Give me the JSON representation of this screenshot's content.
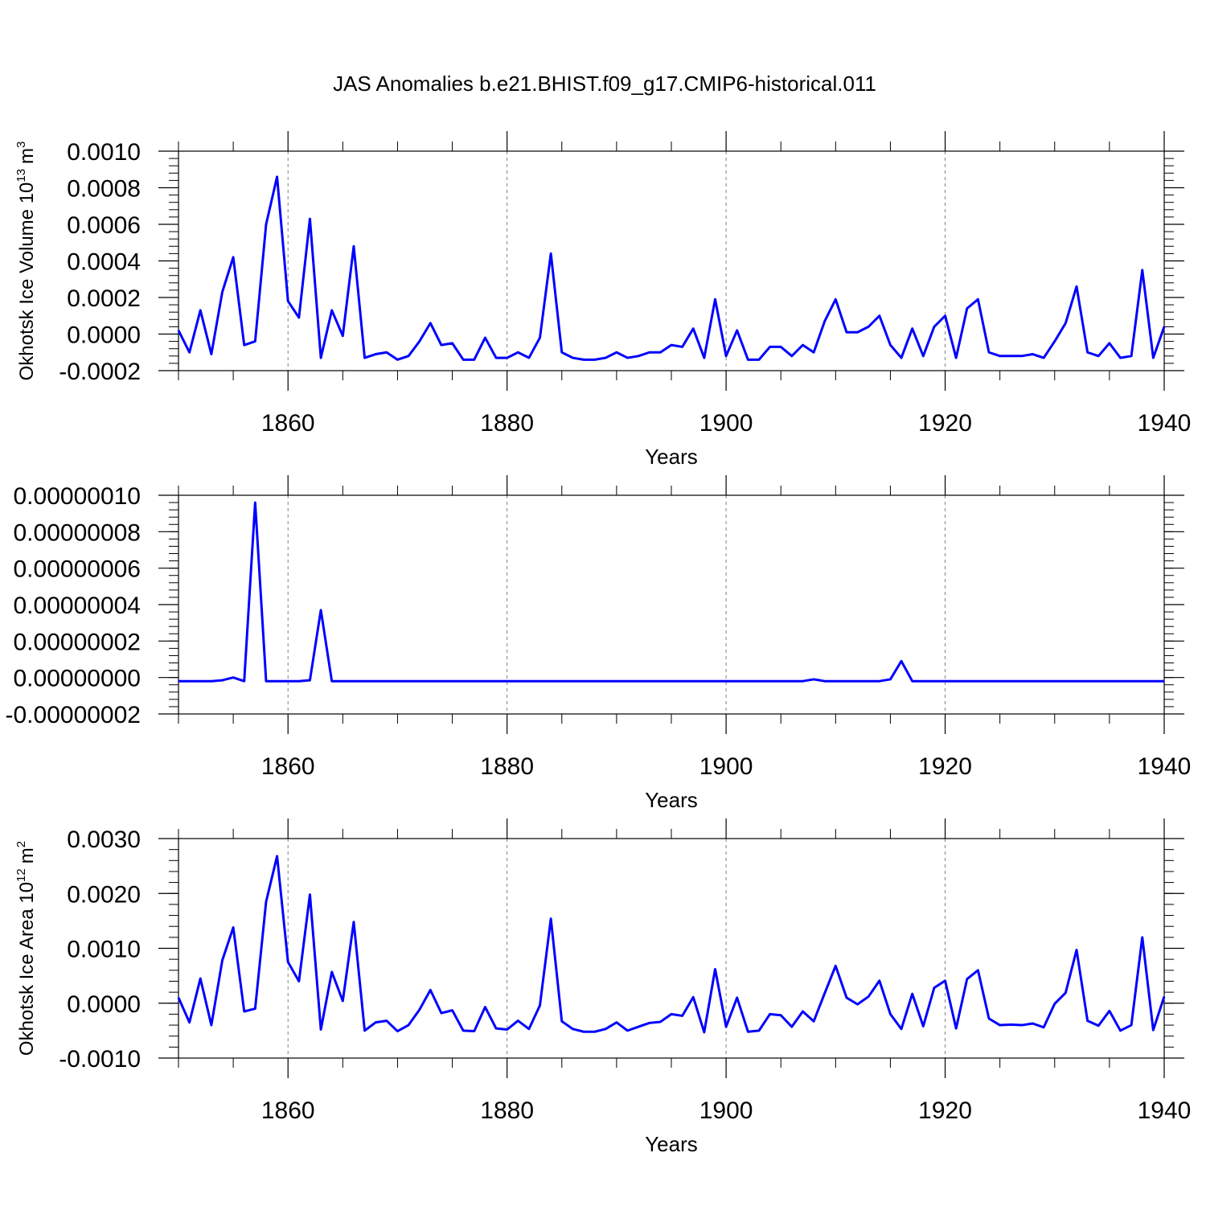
{
  "title": "JAS Anomalies b.e21.BHIST.f09_g17.CMIP6-historical.011",
  "colors": {
    "line": "#0000ff",
    "axis": "#000000",
    "grid": "#808080"
  },
  "chart_data": [
    {
      "type": "line",
      "ylabel_main": "Okhotsk Ice Volume 10",
      "ylabel_exp": "13",
      "ylabel_unit": "m",
      "ylabel_unit_exp": "3",
      "xlabel": "Years",
      "xlim": [
        1850,
        1940
      ],
      "ylim": [
        -0.0002,
        0.001
      ],
      "yticks": [
        -0.0002,
        0,
        0.0002,
        0.0004,
        0.0006,
        0.0008,
        0.001
      ],
      "ytick_labels": [
        "-0.0002",
        "0.0000",
        "0.0002",
        "0.0004",
        "0.0006",
        "0.0008",
        "0.0010"
      ],
      "xticks": [
        1860,
        1880,
        1900,
        1920,
        1940
      ],
      "xtick_labels": [
        "1860",
        "1880",
        "1900",
        "1920",
        "1940"
      ],
      "grid": "vertical dashed at major x ticks",
      "x_start": 1850,
      "values": [
        2e-05,
        -0.0001,
        0.00013,
        -0.00011,
        0.00023,
        0.00042,
        -6e-05,
        -4e-05,
        0.0006,
        0.00086,
        0.00018,
        9e-05,
        0.00063,
        -0.00013,
        0.00013,
        -1e-05,
        0.00048,
        -0.00013,
        -0.00011,
        -0.0001,
        -0.00014,
        -0.00012,
        -4e-05,
        6e-05,
        -6e-05,
        -5e-05,
        -0.00014,
        -0.00014,
        -2e-05,
        -0.00013,
        -0.00013,
        -0.0001,
        -0.00013,
        -2e-05,
        0.00044,
        -0.0001,
        -0.00013,
        -0.00014,
        -0.00014,
        -0.00013,
        -0.0001,
        -0.00013,
        -0.00012,
        -0.0001,
        -0.0001,
        -6e-05,
        -7e-05,
        3e-05,
        -0.00013,
        0.00019,
        -0.00012,
        2e-05,
        -0.00014,
        -0.00014,
        -7e-05,
        -7e-05,
        -0.00012,
        -6e-05,
        -0.0001,
        7e-05,
        0.00019,
        1e-05,
        1e-05,
        4e-05,
        0.0001,
        -6e-05,
        -0.00013,
        3e-05,
        -0.00012,
        4e-05,
        0.0001,
        -0.00013,
        0.00014,
        0.00019,
        -0.0001,
        -0.00012,
        -0.00012,
        -0.00012,
        -0.00011,
        -0.00013,
        -4e-05,
        6e-05,
        0.00026,
        -0.0001,
        -0.00012,
        -5e-05,
        -0.00013,
        -0.00012,
        0.00035,
        -0.00013,
        4e-05
      ]
    },
    {
      "type": "line",
      "xlabel": "Years",
      "xlim": [
        1850,
        1940
      ],
      "ylim": [
        -2e-08,
        1e-07
      ],
      "yticks": [
        -2e-08,
        0,
        2e-08,
        4e-08,
        6e-08,
        8e-08,
        1e-07
      ],
      "ytick_labels": [
        "-0.00000002",
        "0.00000000",
        "0.00000002",
        "0.00000004",
        "0.00000006",
        "0.00000008",
        "0.00000010"
      ],
      "xticks": [
        1860,
        1880,
        1900,
        1920,
        1940
      ],
      "xtick_labels": [
        "1860",
        "1880",
        "1900",
        "1920",
        "1940"
      ],
      "grid": "vertical dashed at major x ticks",
      "x_start": 1850,
      "values": [
        -2e-09,
        -2e-09,
        -2e-09,
        -2e-09,
        -1.5e-09,
        0.0,
        -2e-09,
        9.6e-08,
        -2e-09,
        -2e-09,
        -2e-09,
        -2e-09,
        -1.5e-09,
        3.7e-08,
        -2e-09,
        -2e-09,
        -2e-09,
        -2e-09,
        -2e-09,
        -2e-09,
        -2e-09,
        -2e-09,
        -2e-09,
        -2e-09,
        -2e-09,
        -2e-09,
        -2e-09,
        -2e-09,
        -2e-09,
        -2e-09,
        -2e-09,
        -2e-09,
        -2e-09,
        -2e-09,
        -2e-09,
        -2e-09,
        -2e-09,
        -2e-09,
        -2e-09,
        -2e-09,
        -2e-09,
        -2e-09,
        -2e-09,
        -2e-09,
        -2e-09,
        -2e-09,
        -2e-09,
        -2e-09,
        -2e-09,
        -2e-09,
        -2e-09,
        -2e-09,
        -2e-09,
        -2e-09,
        -2e-09,
        -2e-09,
        -2e-09,
        -2e-09,
        -1e-09,
        -2e-09,
        -2e-09,
        -2e-09,
        -2e-09,
        -2e-09,
        -2e-09,
        -1e-09,
        9e-09,
        -2e-09,
        -2e-09,
        -2e-09,
        -2e-09,
        -2e-09,
        -2e-09,
        -2e-09,
        -2e-09,
        -2e-09,
        -2e-09,
        -2e-09,
        -2e-09,
        -2e-09,
        -2e-09,
        -2e-09,
        -2e-09,
        -2e-09,
        -2e-09,
        -2e-09,
        -2e-09,
        -2e-09,
        -2e-09,
        -2e-09,
        -2e-09
      ]
    },
    {
      "type": "line",
      "ylabel_main": "Okhotsk Ice Area 10",
      "ylabel_exp": "12",
      "ylabel_unit": "m",
      "ylabel_unit_exp": "2",
      "xlabel": "Years",
      "xlim": [
        1850,
        1940
      ],
      "ylim": [
        -0.001,
        0.003
      ],
      "yticks": [
        -0.001,
        0,
        0.001,
        0.002,
        0.003
      ],
      "ytick_labels": [
        "-0.0010",
        "0.0000",
        "0.0010",
        "0.0020",
        "0.0030"
      ],
      "xticks": [
        1860,
        1880,
        1900,
        1920,
        1940
      ],
      "xtick_labels": [
        "1860",
        "1880",
        "1900",
        "1920",
        "1940"
      ],
      "grid": "vertical dashed at major x ticks",
      "x_start": 1850,
      "values": [
        0.0001,
        -0.00035,
        0.00045,
        -0.0004,
        0.00078,
        0.00138,
        -0.00015,
        -0.0001,
        0.00185,
        0.00268,
        0.00075,
        0.0004,
        0.00198,
        -0.00048,
        0.00057,
        4e-05,
        0.00148,
        -0.0005,
        -0.00035,
        -0.00032,
        -0.00051,
        -0.0004,
        -0.00012,
        0.00024,
        -0.00018,
        -0.00013,
        -0.0005,
        -0.00051,
        -7e-05,
        -0.00046,
        -0.00048,
        -0.00032,
        -0.00047,
        -4e-05,
        0.00154,
        -0.00033,
        -0.00047,
        -0.00052,
        -0.00052,
        -0.00047,
        -0.00035,
        -0.0005,
        -0.00043,
        -0.00036,
        -0.00034,
        -0.0002,
        -0.00023,
        0.00011,
        -0.00053,
        0.00062,
        -0.00043,
        0.0001,
        -0.00052,
        -0.0005,
        -0.0002,
        -0.00022,
        -0.00043,
        -0.00015,
        -0.00033,
        0.00018,
        0.00068,
        0.0001,
        -2e-05,
        0.00012,
        0.00041,
        -0.0002,
        -0.00047,
        0.00017,
        -0.00042,
        0.00028,
        0.00041,
        -0.00046,
        0.00044,
        0.0006,
        -0.00028,
        -0.0004,
        -0.00039,
        -0.0004,
        -0.00037,
        -0.00044,
        -1e-05,
        0.00019,
        0.00097,
        -0.00032,
        -0.00041,
        -0.00014,
        -0.0005,
        -0.0004,
        0.0012,
        -0.00049,
        0.00012
      ]
    }
  ]
}
